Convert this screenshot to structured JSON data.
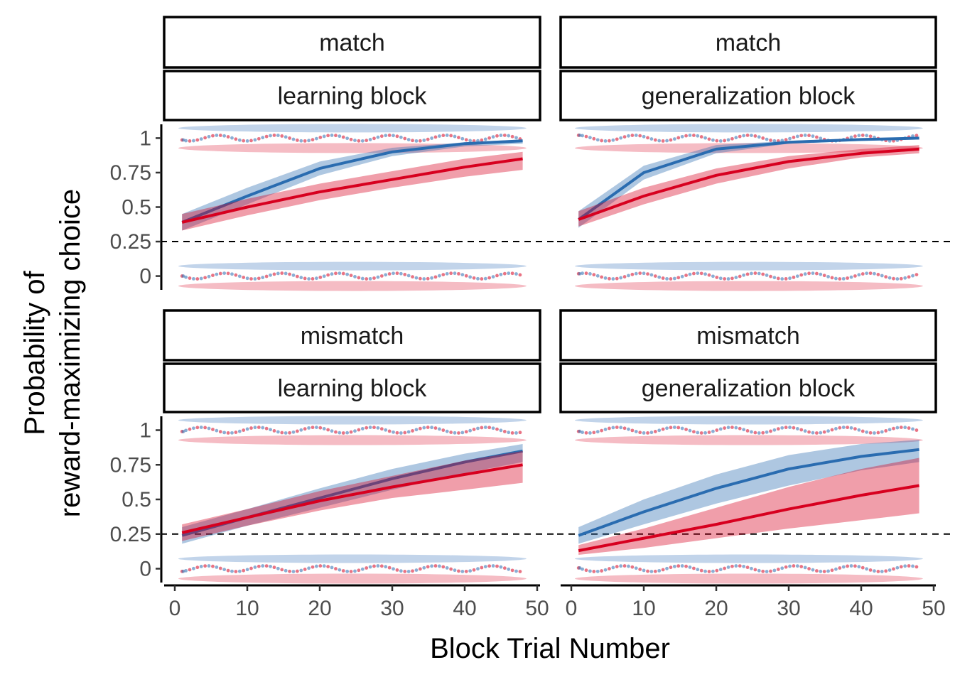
{
  "chart_data": {
    "type": "line",
    "xlabel": "Block Trial Number",
    "ylabel_line1": "Probability of",
    "ylabel_line2": "reward-maximizing choice",
    "xlim": [
      0,
      50
    ],
    "ylim": [
      -0.1,
      1.1
    ],
    "x_ticks": [
      0,
      10,
      20,
      30,
      40,
      50
    ],
    "y_ticks": [
      0,
      0.25,
      0.5,
      0.75,
      1
    ],
    "y_tick_labels": [
      "0",
      "0.25",
      "0.5",
      "0.75",
      "1"
    ],
    "reference_line": 0.25,
    "legend": "none",
    "colors": {
      "series_a": "#2a6cb0",
      "series_b": "#d7001f"
    },
    "panels": [
      {
        "row_label": "match",
        "col_label": "learning block",
        "series": [
          {
            "color_key": "series_a",
            "x": [
              1,
              10,
              20,
              30,
              40,
              48
            ],
            "y": [
              0.39,
              0.58,
              0.78,
              0.9,
              0.96,
              0.98
            ],
            "lower": [
              0.33,
              0.52,
              0.73,
              0.87,
              0.94,
              0.96
            ],
            "upper": [
              0.45,
              0.64,
              0.83,
              0.93,
              0.97,
              0.99
            ]
          },
          {
            "color_key": "series_b",
            "x": [
              1,
              10,
              20,
              30,
              40,
              48
            ],
            "y": [
              0.39,
              0.5,
              0.61,
              0.7,
              0.79,
              0.85
            ],
            "lower": [
              0.33,
              0.44,
              0.55,
              0.64,
              0.72,
              0.77
            ],
            "upper": [
              0.45,
              0.56,
              0.67,
              0.76,
              0.85,
              0.9
            ]
          }
        ]
      },
      {
        "row_label": "match",
        "col_label": "generalization block",
        "series": [
          {
            "color_key": "series_a",
            "x": [
              1,
              10,
              20,
              30,
              40,
              48
            ],
            "y": [
              0.41,
              0.75,
              0.92,
              0.97,
              0.99,
              1.0
            ],
            "lower": [
              0.35,
              0.7,
              0.89,
              0.96,
              0.98,
              0.99
            ],
            "upper": [
              0.47,
              0.8,
              0.95,
              0.98,
              1.0,
              1.0
            ]
          },
          {
            "color_key": "series_b",
            "x": [
              1,
              10,
              20,
              30,
              40,
              48
            ],
            "y": [
              0.41,
              0.58,
              0.73,
              0.83,
              0.89,
              0.92
            ],
            "lower": [
              0.36,
              0.52,
              0.67,
              0.78,
              0.86,
              0.89
            ],
            "upper": [
              0.47,
              0.64,
              0.78,
              0.87,
              0.92,
              0.95
            ]
          }
        ]
      },
      {
        "row_label": "mismatch",
        "col_label": "learning block",
        "series": [
          {
            "color_key": "series_a",
            "x": [
              1,
              10,
              20,
              30,
              40,
              48
            ],
            "y": [
              0.24,
              0.37,
              0.51,
              0.65,
              0.77,
              0.85
            ],
            "lower": [
              0.18,
              0.31,
              0.44,
              0.57,
              0.69,
              0.77
            ],
            "upper": [
              0.3,
              0.43,
              0.58,
              0.72,
              0.83,
              0.9
            ]
          },
          {
            "color_key": "series_b",
            "x": [
              1,
              10,
              20,
              30,
              40,
              48
            ],
            "y": [
              0.26,
              0.37,
              0.49,
              0.59,
              0.68,
              0.75
            ],
            "lower": [
              0.2,
              0.31,
              0.42,
              0.51,
              0.57,
              0.62
            ],
            "upper": [
              0.32,
              0.43,
              0.56,
              0.67,
              0.78,
              0.85
            ]
          }
        ]
      },
      {
        "row_label": "mismatch",
        "col_label": "generalization block",
        "series": [
          {
            "color_key": "series_a",
            "x": [
              1,
              10,
              20,
              30,
              40,
              48
            ],
            "y": [
              0.24,
              0.41,
              0.58,
              0.72,
              0.81,
              0.86
            ],
            "lower": [
              0.18,
              0.32,
              0.47,
              0.6,
              0.71,
              0.77
            ],
            "upper": [
              0.3,
              0.5,
              0.68,
              0.82,
              0.9,
              0.93
            ]
          },
          {
            "color_key": "series_b",
            "x": [
              1,
              10,
              20,
              30,
              40,
              48
            ],
            "y": [
              0.13,
              0.22,
              0.32,
              0.43,
              0.53,
              0.6
            ],
            "lower": [
              0.1,
              0.15,
              0.22,
              0.29,
              0.35,
              0.4
            ],
            "upper": [
              0.17,
              0.29,
              0.44,
              0.59,
              0.72,
              0.8
            ]
          }
        ]
      }
    ]
  }
}
